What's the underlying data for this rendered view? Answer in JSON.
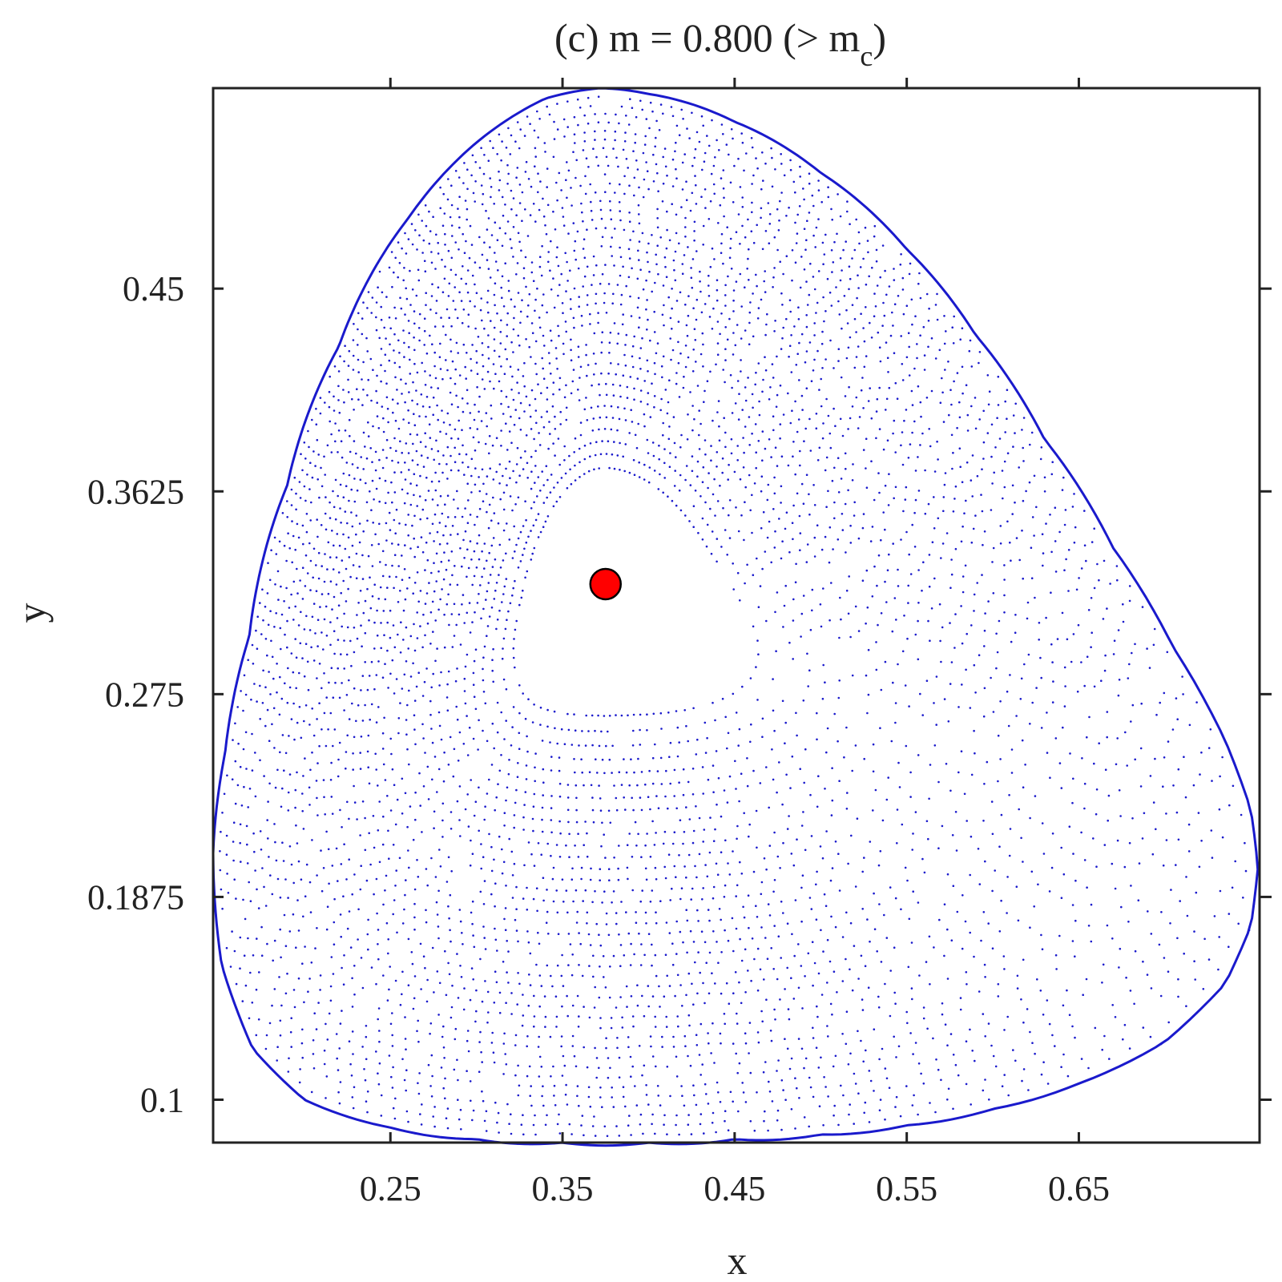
{
  "chart_data": {
    "type": "scatter",
    "title": {
      "prefix": "(c)  m = 0.800  (> m",
      "subscript": "c",
      "suffix": ")"
    },
    "xlabel": "x",
    "ylabel": "y",
    "xlim": [
      0.147,
      0.755
    ],
    "ylim": [
      0.0815,
      0.5365
    ],
    "xticks": [
      0.25,
      0.35,
      0.45,
      0.55,
      0.65
    ],
    "xtick_labels": [
      "0.25",
      "0.35",
      "0.45",
      "0.55",
      "0.65"
    ],
    "yticks": [
      0.1,
      0.1875,
      0.275,
      0.3625,
      0.45
    ],
    "ytick_labels": [
      "0.1",
      "0.1875",
      "0.275",
      "0.3625",
      "0.45"
    ],
    "grid": false,
    "box": true,
    "series": [
      {
        "kind": "orbit-points",
        "color": "#1a1acc",
        "center": [
          0.375,
          0.3225
        ],
        "boundary": [
          [
            0.147,
            0.2075
          ],
          [
            0.152,
            0.158
          ],
          [
            0.17,
            0.122
          ],
          [
            0.2,
            0.1
          ],
          [
            0.25,
            0.088
          ],
          [
            0.3,
            0.083
          ],
          [
            0.35,
            0.0815
          ],
          [
            0.4,
            0.0815
          ],
          [
            0.45,
            0.083
          ],
          [
            0.5,
            0.085
          ],
          [
            0.55,
            0.089
          ],
          [
            0.6,
            0.096
          ],
          [
            0.65,
            0.107
          ],
          [
            0.7,
            0.125
          ],
          [
            0.735,
            0.15
          ],
          [
            0.75,
            0.175
          ],
          [
            0.754,
            0.2
          ],
          [
            0.75,
            0.225
          ],
          [
            0.735,
            0.255
          ],
          [
            0.705,
            0.295
          ],
          [
            0.67,
            0.338
          ],
          [
            0.63,
            0.385
          ],
          [
            0.59,
            0.43
          ],
          [
            0.55,
            0.467
          ],
          [
            0.5,
            0.5
          ],
          [
            0.45,
            0.522
          ],
          [
            0.4,
            0.534
          ],
          [
            0.372,
            0.5365
          ],
          [
            0.34,
            0.532
          ],
          [
            0.3,
            0.513
          ],
          [
            0.26,
            0.48
          ],
          [
            0.22,
            0.425
          ],
          [
            0.19,
            0.365
          ],
          [
            0.168,
            0.3
          ],
          [
            0.154,
            0.25
          ],
          [
            0.147,
            0.2075
          ]
        ]
      }
    ],
    "equilibrium": {
      "x": 0.375,
      "y": 0.3225,
      "color": "#ff0000",
      "edge": "#000000"
    },
    "axis_color": "#222222"
  }
}
